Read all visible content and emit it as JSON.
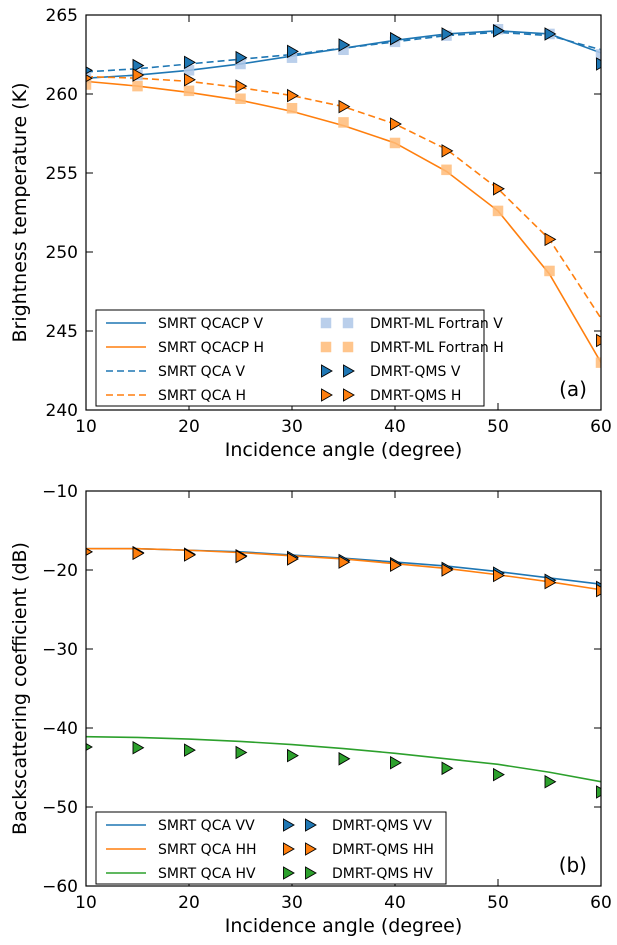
{
  "colors": {
    "blue": "#1f77b4",
    "orange": "#ff7f0e",
    "green": "#2ca02c",
    "light_blue": "#aec7e8",
    "light_orange": "#ffbb78"
  },
  "chart_data": [
    {
      "type": "line",
      "panel_label": "(a)",
      "xlabel": "Incidence angle (degree)",
      "ylabel": "Brightness temperature (K)",
      "xlim": [
        10,
        60
      ],
      "ylim": [
        240,
        265
      ],
      "xticks": [
        10,
        20,
        30,
        40,
        50,
        60
      ],
      "yticks": [
        240,
        245,
        250,
        255,
        260,
        265
      ],
      "grid": false,
      "legend_placement": "lower-left",
      "series": [
        {
          "name": "SMRT QCACP V",
          "style": "solid",
          "marker": "none",
          "color": "#1f77b4",
          "x": [
            10,
            15,
            20,
            25,
            30,
            35,
            40,
            45,
            50,
            55,
            60
          ],
          "y": [
            261.0,
            261.2,
            261.5,
            261.9,
            262.4,
            262.9,
            263.4,
            263.8,
            264.0,
            263.8,
            262.6
          ]
        },
        {
          "name": "SMRT QCACP H",
          "style": "solid",
          "marker": "none",
          "color": "#ff7f0e",
          "x": [
            10,
            15,
            20,
            25,
            30,
            35,
            40,
            45,
            50,
            55,
            60
          ],
          "y": [
            260.8,
            260.5,
            260.1,
            259.6,
            258.9,
            258.0,
            256.9,
            255.1,
            252.6,
            248.6,
            243.0
          ]
        },
        {
          "name": "SMRT QCA V",
          "style": "dashed",
          "marker": "none",
          "color": "#1f77b4",
          "x": [
            10,
            15,
            20,
            25,
            30,
            35,
            40,
            45,
            50,
            55,
            60
          ],
          "y": [
            261.4,
            261.6,
            261.9,
            262.2,
            262.5,
            262.9,
            263.3,
            263.7,
            263.9,
            263.7,
            262.8
          ]
        },
        {
          "name": "SMRT QCA H",
          "style": "dashed",
          "marker": "none",
          "color": "#ff7f0e",
          "x": [
            10,
            15,
            20,
            25,
            30,
            35,
            40,
            45,
            50,
            55,
            60
          ],
          "y": [
            261.1,
            261.0,
            260.8,
            260.4,
            259.9,
            259.2,
            258.1,
            256.5,
            254.0,
            250.8,
            245.8
          ]
        },
        {
          "name": "DMRT-ML Fortran V",
          "style": "none",
          "marker": "square",
          "color": "#aec7e8",
          "x": [
            10,
            15,
            20,
            25,
            30,
            35,
            40,
            45,
            50,
            55,
            60
          ],
          "y": [
            261.0,
            261.2,
            261.5,
            261.9,
            262.3,
            262.8,
            263.3,
            263.7,
            264.1,
            263.8,
            262.5
          ]
        },
        {
          "name": "DMRT-ML Fortran H",
          "style": "none",
          "marker": "square",
          "color": "#ffbb78",
          "x": [
            10,
            15,
            20,
            25,
            30,
            35,
            40,
            45,
            50,
            55,
            60
          ],
          "y": [
            260.6,
            260.5,
            260.2,
            259.7,
            259.1,
            258.2,
            256.9,
            255.2,
            252.6,
            248.8,
            243.0
          ]
        },
        {
          "name": "DMRT-QMS V",
          "style": "none",
          "marker": "triangle-right",
          "color": "#1f77b4",
          "x": [
            10,
            15,
            20,
            25,
            30,
            35,
            40,
            45,
            50,
            55,
            60
          ],
          "y": [
            261.5,
            261.8,
            262.0,
            262.3,
            262.7,
            263.1,
            263.5,
            263.8,
            264.0,
            263.8,
            261.9
          ]
        },
        {
          "name": "DMRT-QMS H",
          "style": "none",
          "marker": "triangle-right",
          "color": "#ff7f0e",
          "x": [
            10,
            15,
            20,
            25,
            30,
            35,
            40,
            45,
            50,
            55,
            60
          ],
          "y": [
            261.0,
            261.2,
            260.9,
            260.5,
            259.9,
            259.2,
            258.1,
            256.4,
            254.0,
            250.8,
            244.4
          ]
        }
      ]
    },
    {
      "type": "line",
      "panel_label": "(b)",
      "xlabel": "Incidence angle (degree)",
      "ylabel": "Backscattering coefficient (dB)",
      "xlim": [
        10,
        60
      ],
      "ylim": [
        -60,
        -10
      ],
      "xticks": [
        10,
        20,
        30,
        40,
        50,
        60
      ],
      "yticks": [
        -60,
        -50,
        -40,
        -30,
        -20,
        -10
      ],
      "grid": false,
      "legend_placement": "lower-left",
      "series": [
        {
          "name": "SMRT QCA VV",
          "style": "solid",
          "marker": "none",
          "color": "#1f77b4",
          "x": [
            10,
            15,
            20,
            25,
            30,
            35,
            40,
            45,
            50,
            55,
            60
          ],
          "y": [
            -17.3,
            -17.3,
            -17.5,
            -17.7,
            -18.1,
            -18.5,
            -19.0,
            -19.5,
            -20.2,
            -21.0,
            -21.8
          ]
        },
        {
          "name": "SMRT QCA HH",
          "style": "solid",
          "marker": "none",
          "color": "#ff7f0e",
          "x": [
            10,
            15,
            20,
            25,
            30,
            35,
            40,
            45,
            50,
            55,
            60
          ],
          "y": [
            -17.3,
            -17.3,
            -17.5,
            -17.8,
            -18.2,
            -18.6,
            -19.2,
            -19.8,
            -20.6,
            -21.5,
            -22.5
          ]
        },
        {
          "name": "SMRT QCA HV",
          "style": "solid",
          "marker": "none",
          "color": "#2ca02c",
          "x": [
            10,
            15,
            20,
            25,
            30,
            35,
            40,
            45,
            50,
            55,
            60
          ],
          "y": [
            -41.1,
            -41.2,
            -41.4,
            -41.7,
            -42.1,
            -42.6,
            -43.2,
            -43.9,
            -44.6,
            -45.6,
            -46.8
          ]
        },
        {
          "name": "DMRT-QMS VV",
          "style": "none",
          "marker": "triangle-right",
          "color": "#1f77b4",
          "x": [
            10,
            15,
            20,
            25,
            30,
            35,
            40,
            45,
            50,
            55,
            60
          ],
          "y": [
            -17.7,
            -17.8,
            -18.0,
            -18.2,
            -18.4,
            -18.8,
            -19.2,
            -19.8,
            -20.4,
            -21.3,
            -22.2
          ]
        },
        {
          "name": "DMRT-QMS HH",
          "style": "none",
          "marker": "triangle-right",
          "color": "#ff7f0e",
          "x": [
            10,
            15,
            20,
            25,
            30,
            35,
            40,
            45,
            50,
            55,
            60
          ],
          "y": [
            -17.7,
            -17.9,
            -18.1,
            -18.3,
            -18.6,
            -19.0,
            -19.4,
            -20.0,
            -20.7,
            -21.6,
            -22.6
          ]
        },
        {
          "name": "DMRT-QMS HV",
          "style": "none",
          "marker": "triangle-right",
          "color": "#2ca02c",
          "x": [
            10,
            15,
            20,
            25,
            30,
            35,
            40,
            45,
            50,
            55,
            60
          ],
          "y": [
            -42.4,
            -42.5,
            -42.8,
            -43.1,
            -43.5,
            -43.9,
            -44.4,
            -45.1,
            -45.9,
            -46.8,
            -48.1
          ]
        }
      ]
    }
  ]
}
